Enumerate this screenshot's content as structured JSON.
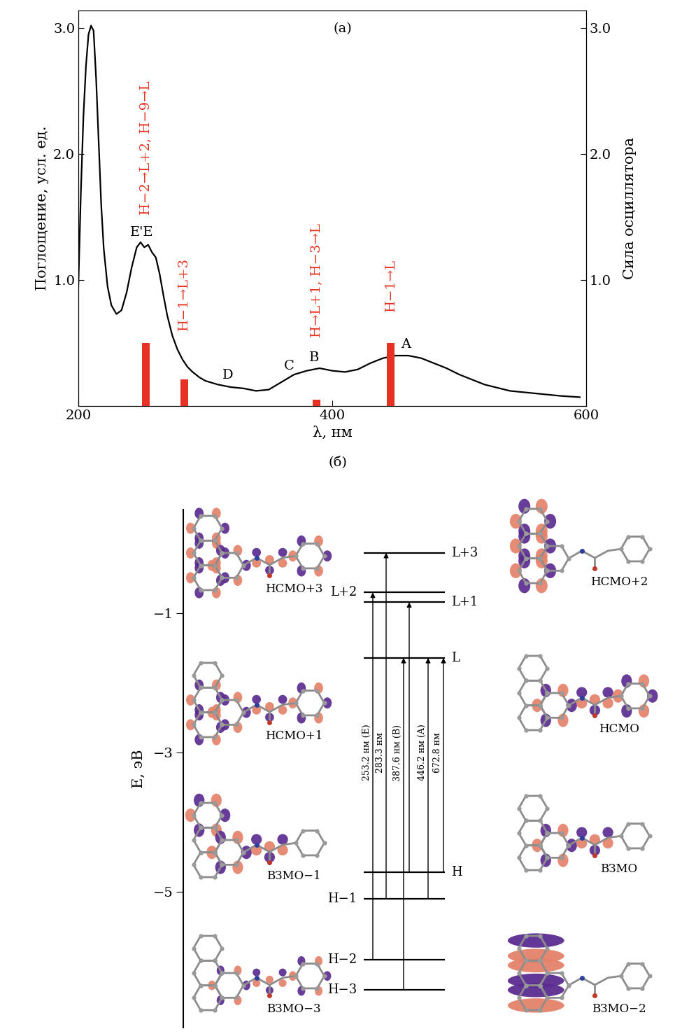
{
  "chart_data": {
    "type": "line",
    "panel_label": "(a)",
    "x_label": "λ, нм",
    "y_label": "Поглощение, усл. ед.",
    "y2_label": "Сила осциллятора",
    "xlim": [
      200,
      600
    ],
    "xticks": [
      200,
      400,
      600
    ],
    "ylim": [
      0,
      3.14
    ],
    "yticks": [
      {
        "value": 1,
        "label": "1.0"
      },
      {
        "value": 2,
        "label": "2.0"
      },
      {
        "value": 3,
        "label": "3.0"
      }
    ],
    "y2lim": [
      0,
      3.14
    ],
    "y2ticks": [
      {
        "value": 1,
        "label": "1.0"
      },
      {
        "value": 2,
        "label": "2.0"
      },
      {
        "value": 3,
        "label": "3.0"
      }
    ],
    "series": [
      {
        "type": "line",
        "color": "#000000",
        "x": [
          200,
          202,
          204,
          206,
          208,
          210,
          212,
          214,
          216,
          218,
          220,
          223,
          226,
          230,
          234,
          238,
          242,
          246,
          249,
          252,
          255,
          258,
          261,
          264,
          267,
          270,
          274,
          278,
          282,
          286,
          290,
          295,
          300,
          310,
          320,
          330,
          340,
          350,
          360,
          370,
          380,
          390,
          400,
          410,
          420,
          430,
          440,
          450,
          460,
          470,
          480,
          490,
          500,
          520,
          540,
          560,
          580,
          595
        ],
        "values": [
          0.95,
          1.7,
          2.3,
          2.7,
          2.95,
          3.02,
          2.98,
          2.6,
          2.1,
          1.6,
          1.25,
          0.95,
          0.8,
          0.73,
          0.76,
          0.9,
          1.1,
          1.26,
          1.3,
          1.26,
          1.28,
          1.22,
          1.18,
          1.05,
          0.88,
          0.72,
          0.56,
          0.45,
          0.37,
          0.31,
          0.27,
          0.23,
          0.2,
          0.17,
          0.15,
          0.14,
          0.12,
          0.13,
          0.19,
          0.25,
          0.28,
          0.3,
          0.28,
          0.27,
          0.29,
          0.34,
          0.38,
          0.4,
          0.4,
          0.38,
          0.34,
          0.3,
          0.25,
          0.17,
          0.12,
          0.1,
          0.08,
          0.07
        ]
      },
      {
        "type": "bar",
        "axis": "y2",
        "color": "#e63222",
        "x": [
          253.2,
          283.3,
          387.6,
          446.2
        ],
        "values": [
          0.5,
          0.21,
          0.05,
          0.5
        ],
        "transitions": [
          "H−2→L+2, H−9→L",
          "H−1→L+3",
          "H→L+1, H−3→L",
          "H−1→L"
        ]
      }
    ],
    "bands": [
      {
        "label": "E'E",
        "x": 250
      },
      {
        "label": "D",
        "x": 318
      },
      {
        "label": "C",
        "x": 366
      },
      {
        "label": "B",
        "x": 386
      },
      {
        "label": "A",
        "x": 458
      }
    ]
  },
  "diagram": {
    "panel_label": "(б)",
    "y_label": "E, эВ",
    "ylim": [
      -6.95,
      0.49
    ],
    "yticks": [
      {
        "value": -1,
        "label": "−1"
      },
      {
        "value": -3,
        "label": "−3"
      },
      {
        "value": -5,
        "label": "−5"
      }
    ],
    "levels": [
      {
        "label": "L+3",
        "energy": -0.13
      },
      {
        "label": "L+2",
        "energy": -0.7
      },
      {
        "label": "L+1",
        "energy": -0.84
      },
      {
        "label": "L",
        "energy": -1.64
      },
      {
        "label": "H",
        "energy": -4.72
      },
      {
        "label": "H−1",
        "energy": -5.1
      },
      {
        "label": "H−2",
        "energy": -5.97
      },
      {
        "label": "H−3",
        "energy": -6.41
      }
    ],
    "transitions": [
      {
        "from": "H−2",
        "to": "L+2",
        "label": "253.2 нм (E)"
      },
      {
        "from": "H−1",
        "to": "L+3",
        "label": "283.3 нм"
      },
      {
        "from": "H−3",
        "to": "L",
        "label": "387.6 нм (B)"
      },
      {
        "from": "H",
        "to": "L+1"
      },
      {
        "from": "H−1",
        "to": "L",
        "label": "446.2 нм (A)"
      },
      {
        "from": "H",
        "to": "L",
        "label": "672.8 нм"
      }
    ],
    "orbitals": [
      "НСМО+3",
      "НСМО+2",
      "НСМО+1",
      "НСМО",
      "ВЗМО−1",
      "ВЗМО",
      "ВЗМО−3",
      "ВЗМО−2"
    ]
  }
}
